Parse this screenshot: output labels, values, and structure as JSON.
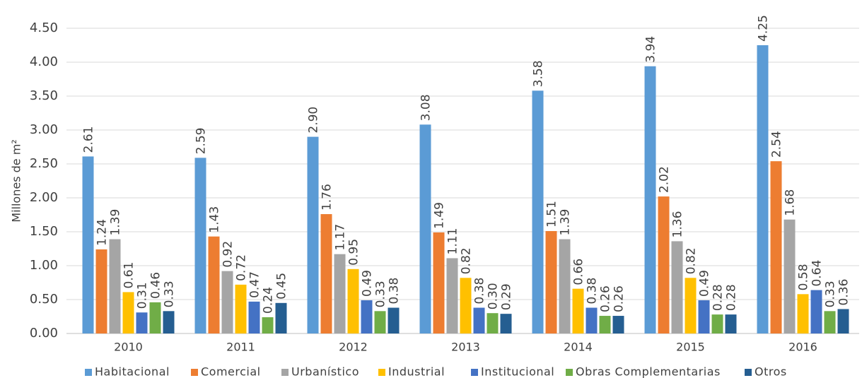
{
  "chart_data": {
    "type": "bar",
    "ylabel": "Millones de m²",
    "categories": [
      "2010",
      "2011",
      "2012",
      "2013",
      "2014",
      "2015",
      "2016"
    ],
    "series": [
      {
        "name": "Habitacional",
        "color": "#5b9bd5",
        "values": [
          2.61,
          2.59,
          2.9,
          3.08,
          3.58,
          3.94,
          4.25
        ],
        "value_labels": [
          "2.61",
          "2.59",
          "2.90",
          "3.08",
          "3.58",
          "3.94",
          "4.25"
        ]
      },
      {
        "name": "Comercial",
        "color": "#ed7d31",
        "values": [
          1.24,
          1.43,
          1.76,
          1.49,
          1.51,
          2.02,
          2.54
        ],
        "value_labels": [
          "1.24",
          "1.43",
          "1.76",
          "1.49",
          "1.51",
          "2.02",
          "2.54"
        ]
      },
      {
        "name": "Urbanístico",
        "color": "#a5a5a5",
        "values": [
          1.39,
          0.92,
          1.17,
          1.11,
          1.39,
          1.36,
          1.68
        ],
        "value_labels": [
          "1.39",
          "0.92",
          "1.17",
          "1.11",
          "1.39",
          "1.36",
          "1.68"
        ]
      },
      {
        "name": "Industrial",
        "color": "#ffc000",
        "values": [
          0.61,
          0.72,
          0.95,
          0.82,
          0.66,
          0.82,
          0.58
        ],
        "value_labels": [
          "0.61",
          "0.72",
          "0.95",
          "0.82",
          "0.66",
          "0.82",
          "0.58"
        ]
      },
      {
        "name": "Institucional",
        "color": "#4472c4",
        "values": [
          0.31,
          0.47,
          0.49,
          0.38,
          0.38,
          0.49,
          0.64
        ],
        "value_labels": [
          "0.31",
          "0.47",
          "0.49",
          "0.38",
          "0.38",
          "0.49",
          "0.64"
        ]
      },
      {
        "name": "Obras Complementarias",
        "color": "#70ad47",
        "values": [
          0.46,
          0.24,
          0.33,
          0.3,
          0.26,
          0.28,
          0.33
        ],
        "value_labels": [
          "0.46",
          "0.24",
          "0.33",
          "0.30",
          "0.26",
          "0.28",
          "0.33"
        ]
      },
      {
        "name": "Otros",
        "color": "#255e91",
        "values": [
          0.33,
          0.45,
          0.38,
          0.29,
          0.26,
          0.28,
          0.36
        ],
        "value_labels": [
          "0.33",
          "0.45",
          "0.38",
          "0.29",
          "0.26",
          "0.28",
          "0.36"
        ]
      }
    ],
    "ylim": [
      0,
      4.5
    ],
    "yticks": [
      {
        "value": 0,
        "label": "0.00"
      },
      {
        "value": 0.5,
        "label": "0.50"
      },
      {
        "value": 1,
        "label": "1.00"
      },
      {
        "value": 1.5,
        "label": "1.50"
      },
      {
        "value": 2,
        "label": "2.00"
      },
      {
        "value": 2.5,
        "label": "2.50"
      },
      {
        "value": 3,
        "label": "3.00"
      },
      {
        "value": 3.5,
        "label": "3.50"
      },
      {
        "value": 4,
        "label": "4.00"
      },
      {
        "value": 4.5,
        "label": "4.50"
      }
    ],
    "grid": true,
    "legend": "bottom"
  }
}
